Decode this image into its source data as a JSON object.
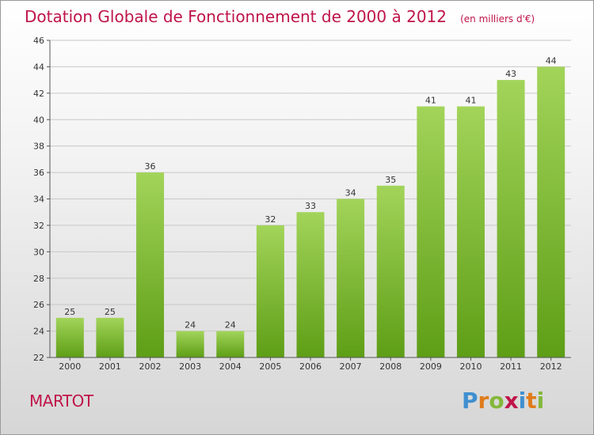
{
  "title": "Dotation Globale de Fonctionnement de 2000 à 2012",
  "subtitle": "(en milliers d'€)",
  "commune": "MARTOT",
  "brand": {
    "text": "Proxiti",
    "letters": [
      {
        "ch": "P",
        "color": "#3f8fd0"
      },
      {
        "ch": "r",
        "color": "#e07c1a"
      },
      {
        "ch": "o",
        "color": "#84b83a"
      },
      {
        "ch": "x",
        "color": "#c0144a"
      },
      {
        "ch": "i",
        "color": "#3f8fd0"
      },
      {
        "ch": "t",
        "color": "#e07c1a"
      },
      {
        "ch": "i",
        "color": "#84b83a"
      }
    ]
  },
  "colors": {
    "title": "#c0144a",
    "bar_light": "#a2d45a",
    "bar_dark": "#5e9e16",
    "grid": "#c8c8c8",
    "axis": "#555555",
    "tick_text": "#333333"
  },
  "chart_data": {
    "type": "bar",
    "title": "Dotation Globale de Fonctionnement de 2000 à 2012",
    "subtitle": "(en milliers d'€)",
    "categories": [
      "2000",
      "2001",
      "2002",
      "2003",
      "2004",
      "2005",
      "2006",
      "2007",
      "2008",
      "2009",
      "2010",
      "2011",
      "2012"
    ],
    "values": [
      25,
      25,
      36,
      24,
      24,
      32,
      33,
      34,
      35,
      41,
      41,
      43,
      44
    ],
    "ylim": [
      22,
      46
    ],
    "yticks": [
      22,
      24,
      26,
      28,
      30,
      32,
      34,
      36,
      38,
      40,
      42,
      44,
      46
    ],
    "xlabel": "",
    "ylabel": "",
    "grid": true,
    "data_labels": true
  }
}
